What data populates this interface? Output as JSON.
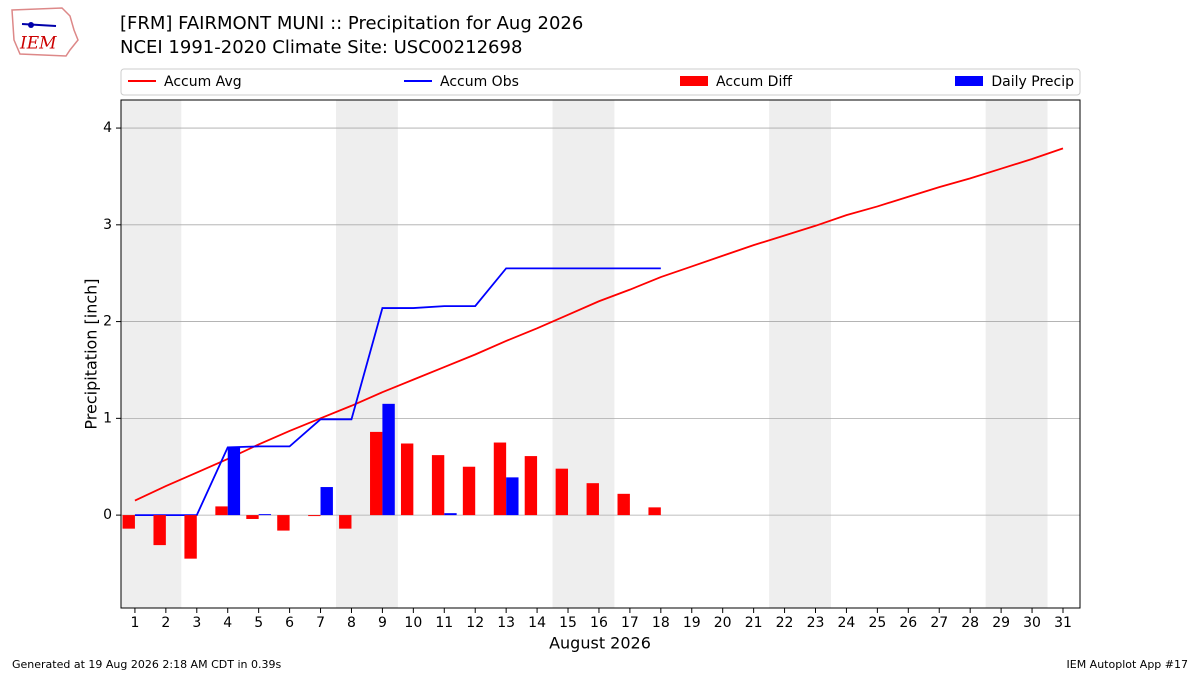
{
  "logo_text": "IEM",
  "footer_left": "Generated at 19 Aug 2026 2:18 AM CDT in 0.39s",
  "footer_right": "IEM Autoplot App #17",
  "chart_data": {
    "type": "combo",
    "title": "[FRM] FAIRMONT MUNI :: Precipitation for Aug 2026",
    "subtitle": "NCEI 1991-2020 Climate Site: USC00212698",
    "x_label": "August 2026",
    "y_label": "Precipitation [inch]",
    "x": [
      1,
      2,
      3,
      4,
      5,
      6,
      7,
      8,
      9,
      10,
      11,
      12,
      13,
      14,
      15,
      16,
      17,
      18,
      19,
      20,
      21,
      22,
      23,
      24,
      25,
      26,
      27,
      28,
      29,
      30,
      31
    ],
    "xlim": [
      0.55,
      31.55
    ],
    "xticks": [
      1,
      2,
      3,
      4,
      5,
      6,
      7,
      8,
      9,
      10,
      11,
      12,
      13,
      14,
      15,
      16,
      17,
      18,
      19,
      20,
      21,
      22,
      23,
      24,
      25,
      26,
      27,
      28,
      29,
      30,
      31
    ],
    "ylim": [
      -0.96,
      4.29
    ],
    "yticks": [
      0,
      1,
      2,
      3,
      4
    ],
    "grid": true,
    "shaded_spans": [
      [
        0.5,
        2.5
      ],
      [
        7.5,
        9.5
      ],
      [
        14.5,
        16.5
      ],
      [
        21.5,
        23.5
      ],
      [
        28.5,
        30.5
      ]
    ],
    "shade_color": "#eeeeee",
    "series": [
      {
        "name": "Accum Avg",
        "type": "line",
        "color": "#ff0000",
        "values": [
          0.15,
          0.3,
          0.44,
          0.58,
          0.73,
          0.87,
          1.0,
          1.13,
          1.27,
          1.4,
          1.53,
          1.66,
          1.8,
          1.93,
          2.07,
          2.21,
          2.33,
          2.46,
          2.57,
          2.68,
          2.79,
          2.89,
          2.99,
          3.1,
          3.19,
          3.29,
          3.39,
          3.48,
          3.58,
          3.68,
          3.79
        ]
      },
      {
        "name": "Accum Obs",
        "type": "line",
        "color": "#0000ff",
        "values": [
          0,
          0,
          0,
          0.7,
          0.71,
          0.71,
          0.99,
          0.99,
          2.14,
          2.14,
          2.16,
          2.16,
          2.55,
          2.55,
          2.55,
          2.55,
          2.55,
          2.55,
          null,
          null,
          null,
          null,
          null,
          null,
          null,
          null,
          null,
          null,
          null,
          null,
          null
        ]
      },
      {
        "name": "Accum Diff",
        "type": "bar",
        "color": "#ff0000",
        "values": [
          -0.14,
          -0.31,
          -0.45,
          0.09,
          -0.04,
          -0.16,
          -0.01,
          -0.14,
          0.86,
          0.74,
          0.62,
          0.5,
          0.75,
          0.61,
          0.48,
          0.33,
          0.22,
          0.08,
          null,
          null,
          null,
          null,
          null,
          null,
          null,
          null,
          null,
          null,
          null,
          null,
          null
        ]
      },
      {
        "name": "Daily Precip",
        "type": "bar",
        "color": "#0000ff",
        "values": [
          0,
          0,
          0,
          0.7,
          0.01,
          0,
          0.29,
          0,
          1.15,
          0,
          0.02,
          0,
          0.39,
          0,
          0,
          0,
          0,
          0,
          null,
          null,
          null,
          null,
          null,
          null,
          null,
          null,
          null,
          null,
          null,
          null,
          null
        ]
      }
    ]
  }
}
